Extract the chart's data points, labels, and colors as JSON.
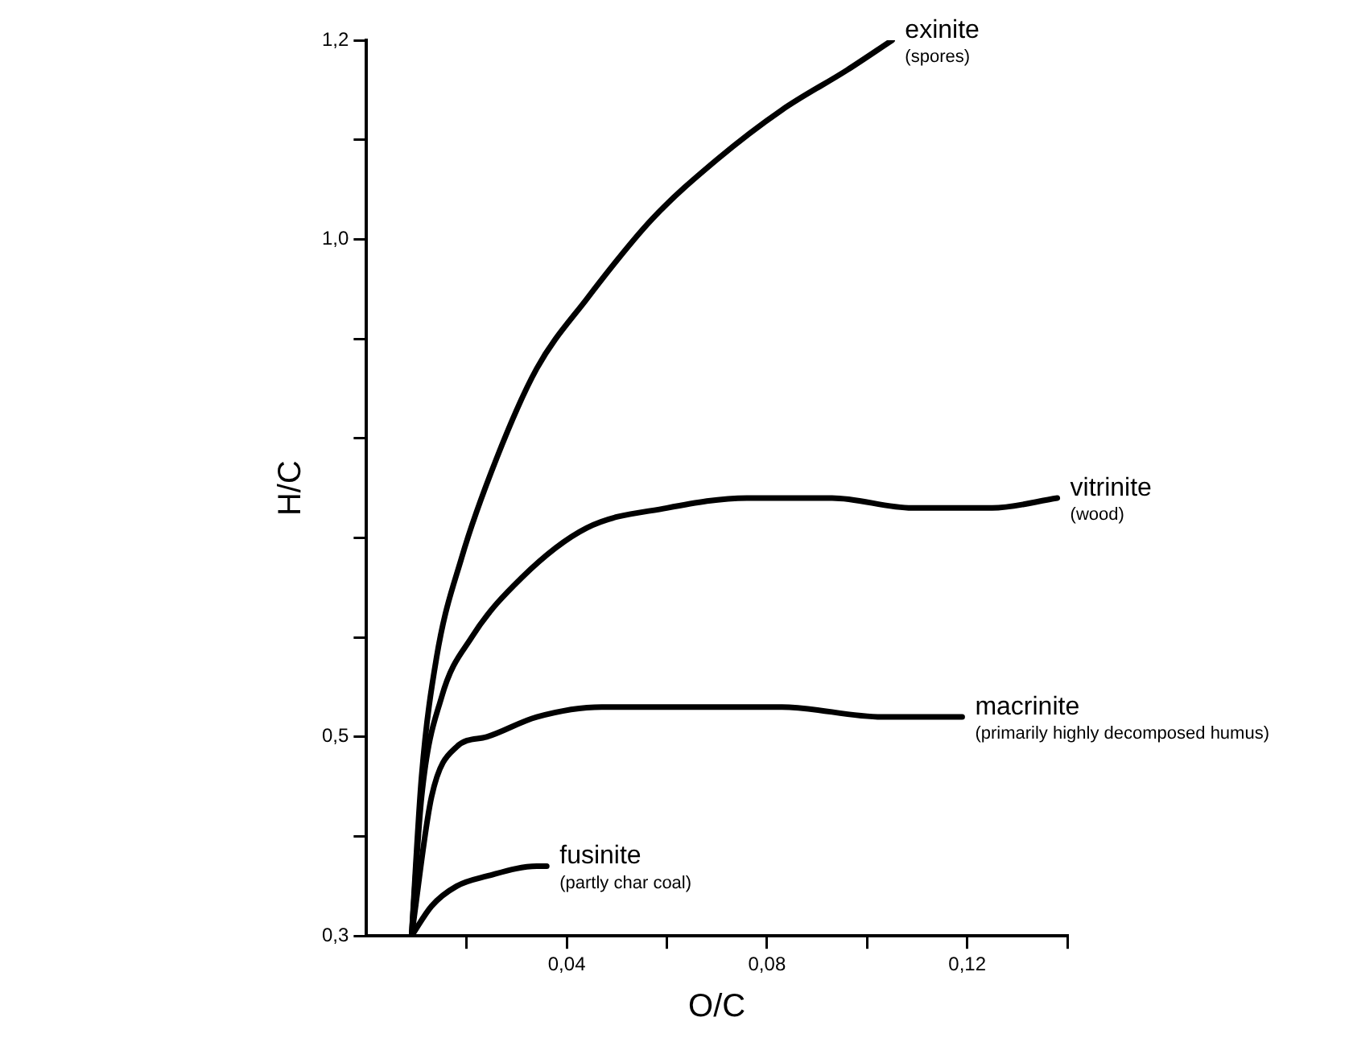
{
  "chart_data": {
    "type": "line",
    "xlabel": "O/C",
    "ylabel": "H/C",
    "xlim": [
      0,
      0.14
    ],
    "ylim": [
      0.3,
      1.2
    ],
    "xticks": [
      {
        "value": 0.02,
        "label": null
      },
      {
        "value": 0.04,
        "label": "0,04"
      },
      {
        "value": 0.06,
        "label": null
      },
      {
        "value": 0.08,
        "label": "0,08"
      },
      {
        "value": 0.1,
        "label": null
      },
      {
        "value": 0.12,
        "label": "0,12"
      },
      {
        "value": 0.14,
        "label": null
      }
    ],
    "yticks": [
      {
        "value": 0.3,
        "label": "0,3"
      },
      {
        "value": 0.4,
        "label": null
      },
      {
        "value": 0.5,
        "label": "0,5"
      },
      {
        "value": 0.6,
        "label": null
      },
      {
        "value": 0.7,
        "label": null
      },
      {
        "value": 0.8,
        "label": null
      },
      {
        "value": 0.9,
        "label": null
      },
      {
        "value": 1.0,
        "label": "1,0"
      },
      {
        "value": 1.1,
        "label": null
      },
      {
        "value": 1.2,
        "label": "1,2"
      }
    ],
    "grid": false,
    "legend": false,
    "marker": "none",
    "line_style": "solid",
    "series": [
      {
        "name": "exinite",
        "color": "#000000",
        "x": [
          0.009,
          0.011,
          0.014,
          0.019,
          0.026,
          0.034,
          0.044,
          0.057,
          0.07,
          0.083,
          0.096,
          0.105
        ],
        "values": [
          0.3,
          0.46,
          0.58,
          0.68,
          0.78,
          0.87,
          0.94,
          1.02,
          1.08,
          1.13,
          1.17,
          1.2
        ]
      },
      {
        "name": "vitrinite",
        "color": "#000000",
        "x": [
          0.009,
          0.011,
          0.015,
          0.021,
          0.031,
          0.044,
          0.06,
          0.076,
          0.093,
          0.109,
          0.125,
          0.138
        ],
        "values": [
          0.3,
          0.44,
          0.54,
          0.6,
          0.66,
          0.71,
          0.73,
          0.74,
          0.74,
          0.73,
          0.73,
          0.74
        ]
      },
      {
        "name": "macrinite",
        "color": "#000000",
        "x": [
          0.009,
          0.013,
          0.018,
          0.024,
          0.034,
          0.047,
          0.06,
          0.083,
          0.103,
          0.119
        ],
        "values": [
          0.3,
          0.44,
          0.49,
          0.5,
          0.52,
          0.53,
          0.53,
          0.53,
          0.52,
          0.52
        ]
      },
      {
        "name": "fusinite",
        "color": "#000000",
        "x": [
          0.009,
          0.013,
          0.018,
          0.024,
          0.034,
          0.036
        ],
        "values": [
          0.3,
          0.33,
          0.35,
          0.36,
          0.37,
          0.37
        ]
      }
    ],
    "annotations": [
      {
        "text": "(spores)",
        "x": 0.105,
        "y": 1.2
      },
      {
        "text": "(wood)",
        "x": 0.138,
        "y": 0.74
      },
      {
        "text": "(primarily highly decomposed humus)",
        "x": 0.119,
        "y": 0.52
      },
      {
        "text": "(partly char coal)",
        "x": 0.036,
        "y": 0.37
      }
    ]
  }
}
